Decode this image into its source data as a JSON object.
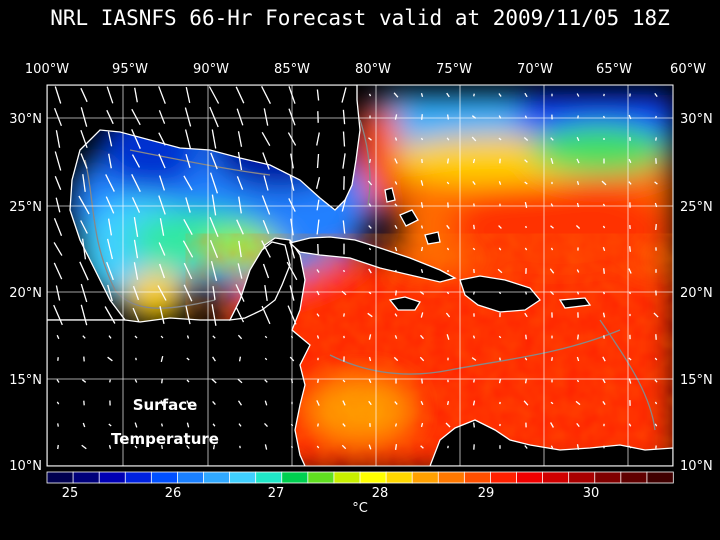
{
  "title": "NRL IASNFS  66-Hr Forecast valid at 2009/11/05 18Z",
  "lon_labels": [
    "100°W",
    "95°W",
    "90°W",
    "85°W",
    "80°W",
    "75°W",
    "70°W",
    "65°W",
    "60°W"
  ],
  "lat_labels": [
    "30°N",
    "25°N",
    "20°N",
    "15°N",
    "10°N"
  ],
  "annotation": {
    "line1": "Surface",
    "line2": "Temperature"
  },
  "colorbar": {
    "labels": [
      "25",
      "26",
      "27",
      "28",
      "29",
      "30"
    ],
    "unit": "°C",
    "colors": [
      "#000050",
      "#00007a",
      "#0000b4",
      "#0022e0",
      "#0050ff",
      "#1a80ff",
      "#30a8ff",
      "#40d0ff",
      "#20e8c8",
      "#00d050",
      "#60e020",
      "#c8f000",
      "#ffff00",
      "#ffd800",
      "#ffa000",
      "#ff7800",
      "#ff5000",
      "#ff2000",
      "#f00000",
      "#d00000",
      "#a80000",
      "#800000",
      "#600000",
      "#400000"
    ]
  },
  "colors": {
    "background": "#000000",
    "land": "#000000",
    "coastline": "#ffffff",
    "grid": "#ffffff",
    "isobath": "#888888"
  }
}
